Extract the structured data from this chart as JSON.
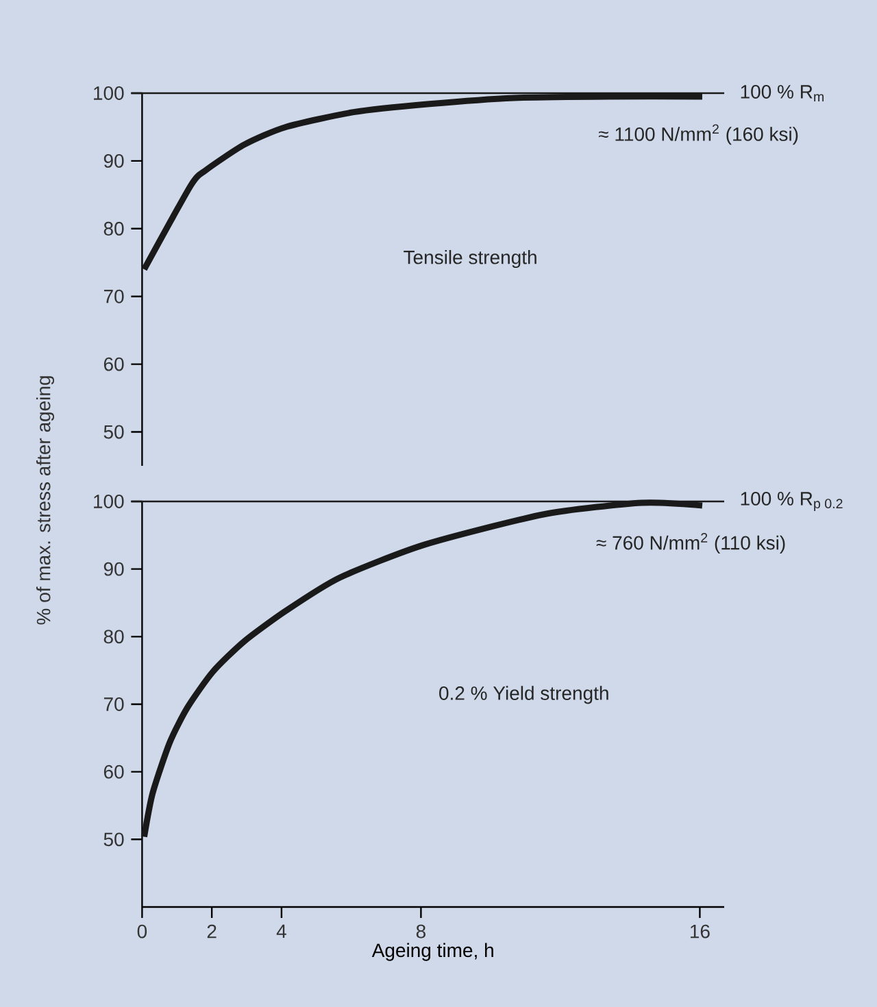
{
  "chart_data": [
    {
      "type": "line",
      "ylabel": "% of max. stress after ageing",
      "xlim": [
        0,
        16.7
      ],
      "ylim": [
        45,
        100
      ],
      "yticks": [
        50,
        60,
        70,
        80,
        90,
        100
      ],
      "tick_labels": "y",
      "line_style": "solid",
      "marker": "none",
      "series": [
        {
          "color": "#1a1a1a",
          "x": [
            0.06,
            1.4,
            1.82,
            2.93,
            4.12,
            6.07,
            8.24,
            10.67,
            13.4,
            16.07
          ],
          "values": [
            74.0,
            86.4,
            88.6,
            92.4,
            95.0,
            97.2,
            98.4,
            99.3,
            99.5,
            99.5
          ]
        }
      ],
      "ref_lines": [
        {
          "axis": "y",
          "value": 100,
          "label": "100 % R$_{m}$",
          "color": "#1a1a1a"
        }
      ],
      "annotations": [
        "≈ 1100 N/mm$^{2}$ (160 ksi)",
        "Tensile strength"
      ]
    },
    {
      "type": "line",
      "xlabel": "Ageing time, h",
      "xlim": [
        0,
        16.7
      ],
      "xticks": [
        0,
        2,
        4,
        8,
        16
      ],
      "ylim": [
        40,
        100
      ],
      "yticks": [
        50,
        60,
        70,
        80,
        90,
        100
      ],
      "line_style": "solid",
      "marker": "none",
      "series": [
        {
          "color": "#1a1a1a",
          "x": [
            0.06,
            0.3,
            0.79,
            1.3,
            2.03,
            2.93,
            4.12,
            5.66,
            8.1,
            11.53,
            14.34,
            16.07
          ],
          "values": [
            50.4,
            56.8,
            64.3,
            69.5,
            74.8,
            79.3,
            83.8,
            88.7,
            93.6,
            98.1,
            99.8,
            99.4
          ]
        }
      ],
      "ref_lines": [
        {
          "axis": "y",
          "value": 100,
          "label": "100 % R$_{p 0.2}$",
          "color": "#1a1a1a"
        }
      ],
      "annotations": [
        "≈ 760 N/mm$^{2}$ (110 ksi)",
        "0.2 % Yield strength"
      ]
    }
  ]
}
